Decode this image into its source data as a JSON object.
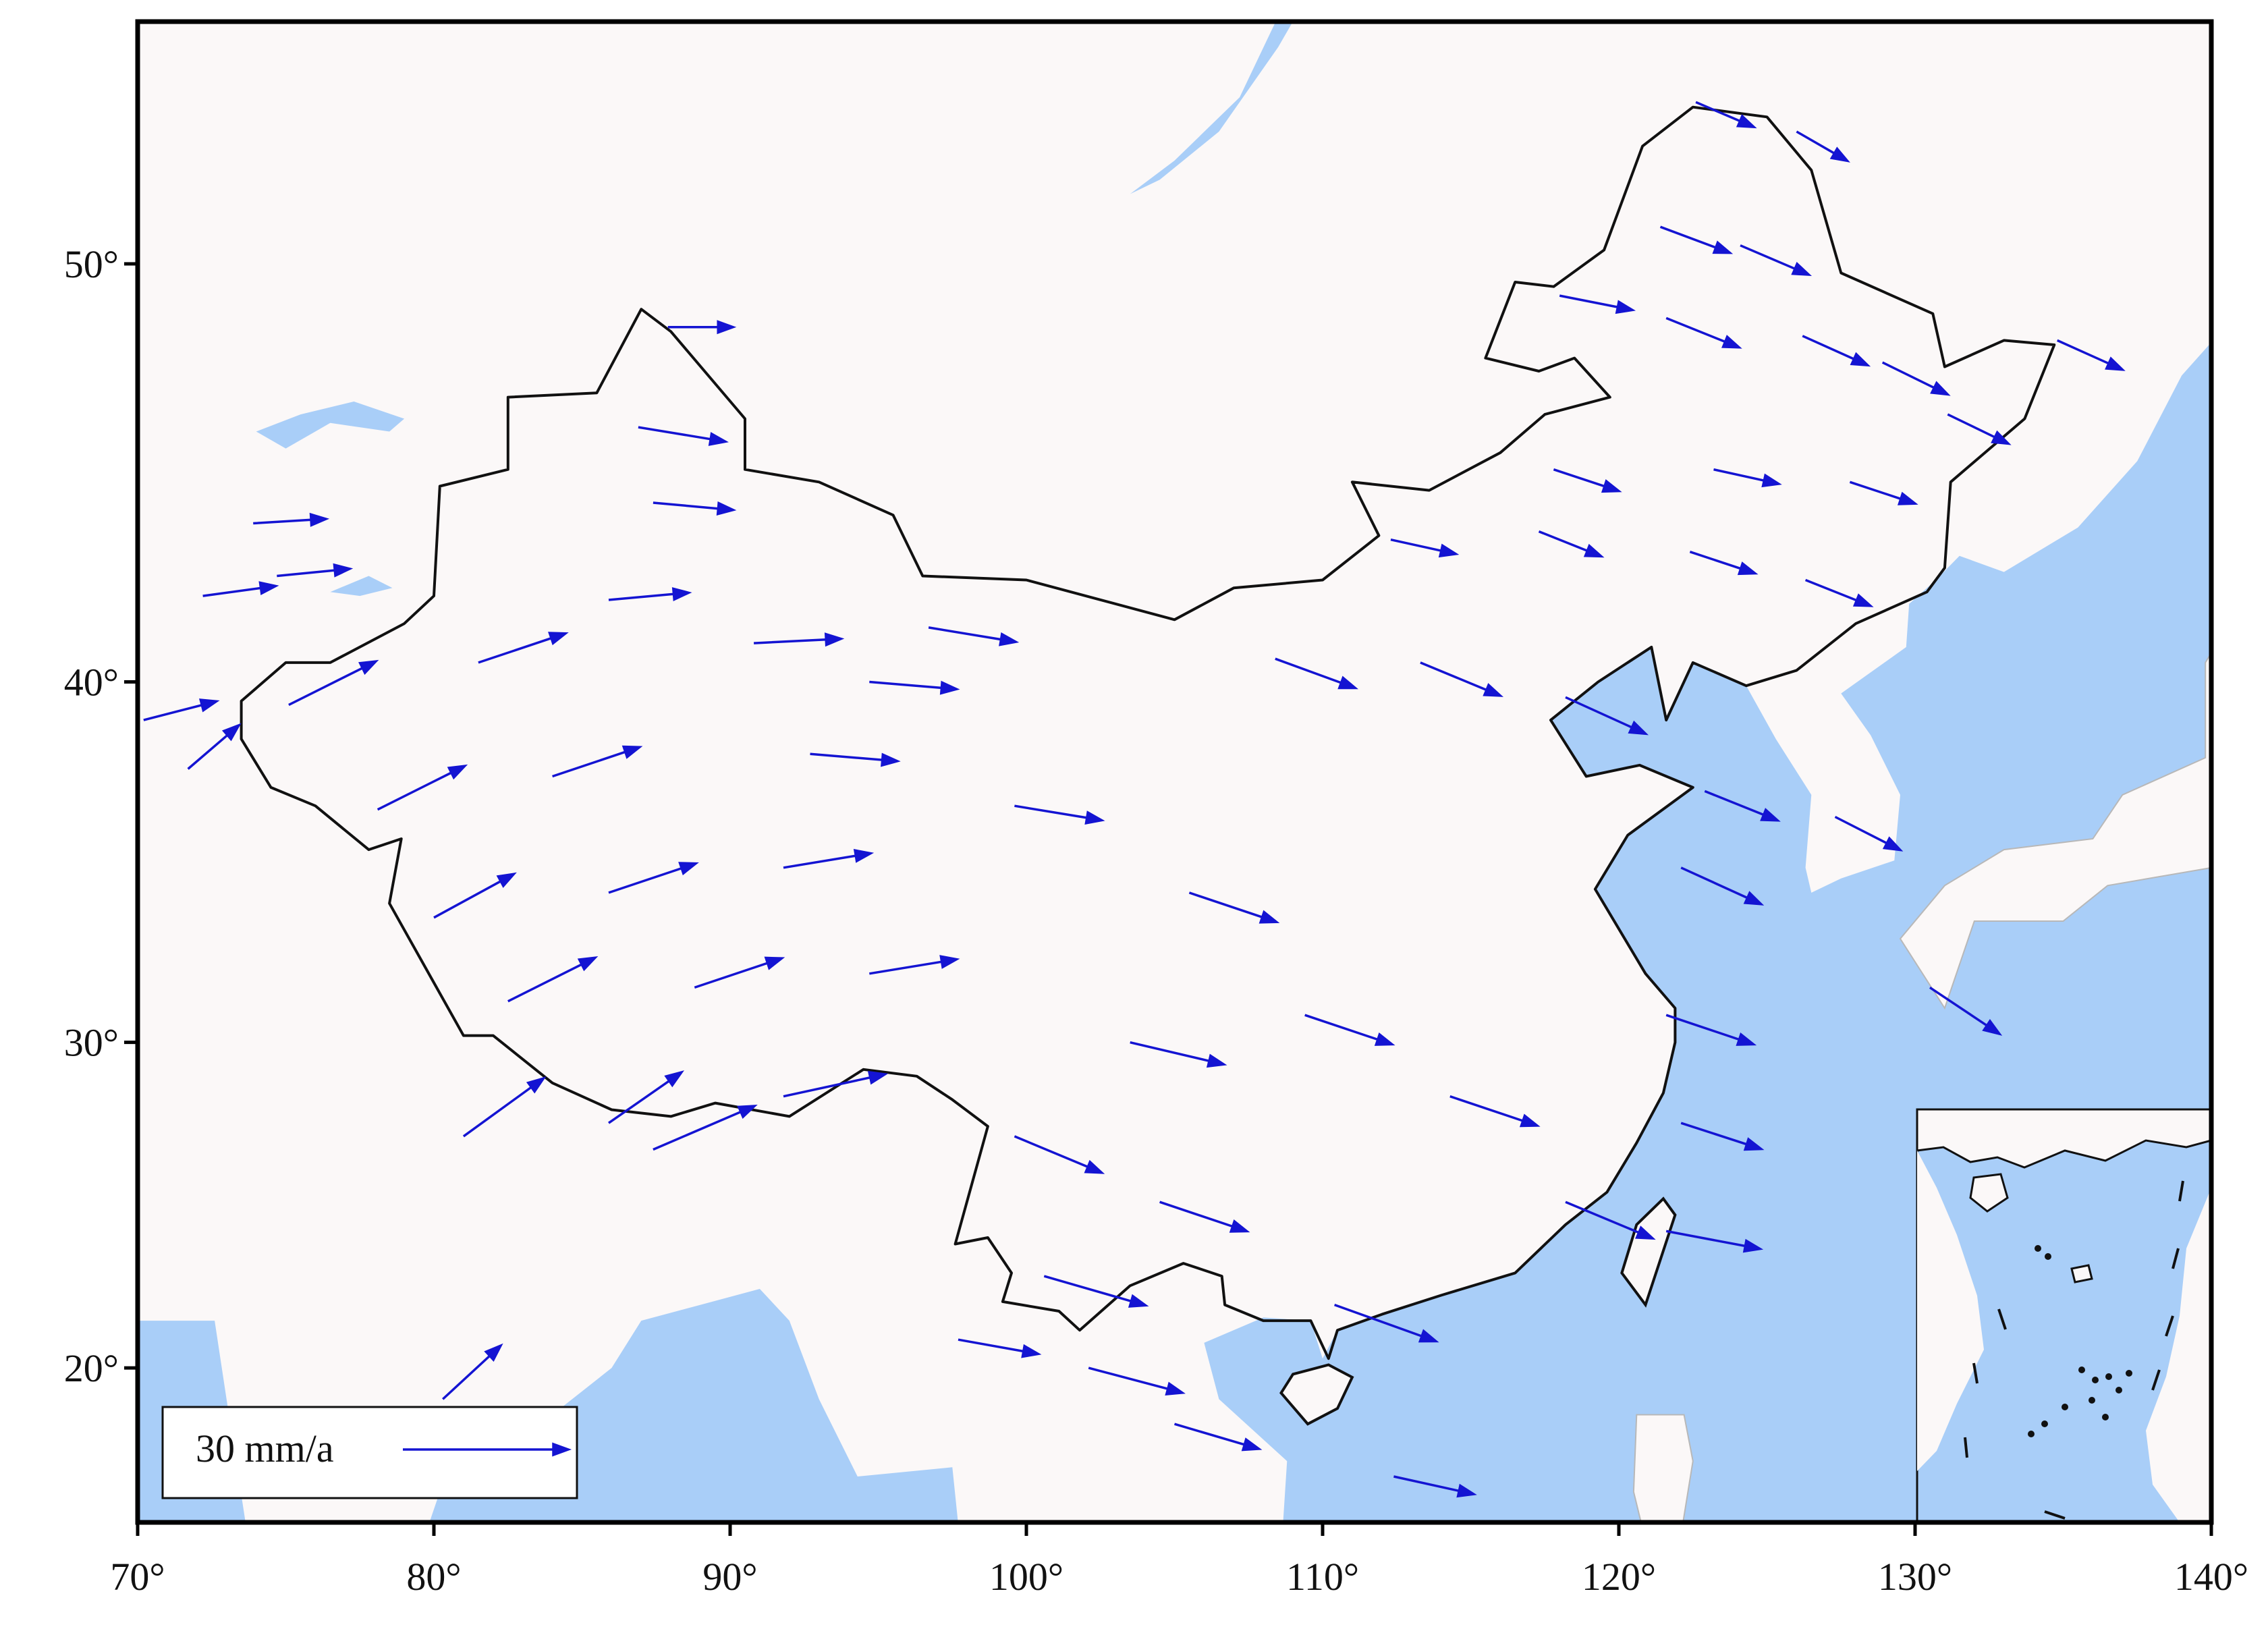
{
  "chart_data": {
    "type": "quiver",
    "projection": "mercator",
    "xlim": [
      70,
      140
    ],
    "ylim": [
      15,
      55
    ],
    "xticks": [
      {
        "value": 70,
        "label": "70°"
      },
      {
        "value": 80,
        "label": "80°"
      },
      {
        "value": 90,
        "label": "90°"
      },
      {
        "value": 100,
        "label": "100°"
      },
      {
        "value": 110,
        "label": "110°"
      },
      {
        "value": 120,
        "label": "120°"
      },
      {
        "value": 130,
        "label": "130°"
      },
      {
        "value": 140,
        "label": "140°"
      }
    ],
    "yticks": [
      {
        "value": 20,
        "label": "20°"
      },
      {
        "value": 30,
        "label": "30°"
      },
      {
        "value": 40,
        "label": "40°"
      },
      {
        "value": 50,
        "label": "50°"
      }
    ],
    "color": "#1414d2",
    "legend": {
      "label": "30 mm/a",
      "value": 30,
      "corner": "lower left"
    },
    "series": [
      {
        "x": [
          122.6,
          126.0,
          121.4,
          124.1,
          118.0,
          121.6,
          126.2,
          128.9,
          131.1,
          134.8,
          117.8,
          123.2,
          127.8,
          117.3,
          122.4,
          126.3,
          112.3,
          108.4,
          113.3,
          118.2,
          122.9,
          127.3,
          130.5,
          122.1,
          121.6,
          122.1,
          121.6,
          118.2,
          114.3,
          109.4,
          110.4,
          112.4,
          105.0,
          102.1,
          97.7,
          100.6,
          104.5,
          99.6,
          103.5,
          105.5,
          99.6,
          94.7,
          92.7,
          81.0,
          85.9,
          87.4,
          91.8,
          82.5,
          88.8,
          94.7,
          80.0,
          85.9,
          91.8,
          78.1,
          84.0,
          75.1,
          81.5,
          71.7,
          70.2,
          85.9,
          87.4,
          86.9,
          87.9,
          90.8,
          73.9,
          72.2,
          74.7,
          80.3,
          96.7
        ],
        "y": [
          53.4,
          52.8,
          50.8,
          50.4,
          49.3,
          48.8,
          48.4,
          47.8,
          46.6,
          48.3,
          45.3,
          45.3,
          45.0,
          43.8,
          43.3,
          42.6,
          43.6,
          40.6,
          40.5,
          39.6,
          37.1,
          36.4,
          31.6,
          35.0,
          30.8,
          27.6,
          24.3,
          25.2,
          28.4,
          30.8,
          22.0,
          16.5,
          18.2,
          20.0,
          20.9,
          22.9,
          25.2,
          27.2,
          30.0,
          34.3,
          36.7,
          40.0,
          38.1,
          27.2,
          27.6,
          26.8,
          28.4,
          31.2,
          31.6,
          32.0,
          33.6,
          34.3,
          35.0,
          36.6,
          37.5,
          39.4,
          40.5,
          37.7,
          39.0,
          42.1,
          44.5,
          46.3,
          48.6,
          41.0,
          44.0,
          42.2,
          42.7,
          19.0,
          41.4
        ],
        "u": [
          10.5,
          9.2,
          12.6,
          12.4,
          13.2,
          13.2,
          11.8,
          11.8,
          11.0,
          11.8,
          11.8,
          11.8,
          11.8,
          11.3,
          11.8,
          11.8,
          11.8,
          14.5,
          14.5,
          14.5,
          13.2,
          11.8,
          12.6,
          14.5,
          15.8,
          14.5,
          17.0,
          15.8,
          15.8,
          15.8,
          18.4,
          14.5,
          15.3,
          17.0,
          14.5,
          18.4,
          15.8,
          15.8,
          17.0,
          15.8,
          15.8,
          15.8,
          15.8,
          14.5,
          13.2,
          18.4,
          18.4,
          15.8,
          15.8,
          15.8,
          14.5,
          15.8,
          15.8,
          15.8,
          15.8,
          15.8,
          15.8,
          9.2,
          13.2,
          14.5,
          14.5,
          15.8,
          11.8,
          15.8,
          13.2,
          13.2,
          13.2,
          10.5,
          15.8
        ],
        "v": [
          -4.5,
          -5.3,
          -4.7,
          -5.3,
          -2.6,
          -5.3,
          -5.3,
          -5.8,
          -5.3,
          -5.3,
          -3.9,
          -2.6,
          -3.9,
          -4.5,
          -3.9,
          -4.7,
          -2.6,
          -5.3,
          -6.0,
          -6.6,
          -5.3,
          -6.0,
          -8.4,
          -6.6,
          -5.3,
          -4.7,
          -3.2,
          -6.6,
          -5.3,
          -5.3,
          -6.6,
          -3.2,
          -4.5,
          -4.5,
          -2.6,
          -5.3,
          -5.3,
          -6.6,
          -4.0,
          -5.3,
          -2.6,
          -1.3,
          -1.3,
          10.5,
          9.2,
          7.9,
          4.0,
          7.9,
          5.3,
          2.6,
          7.9,
          5.3,
          2.6,
          7.9,
          5.3,
          7.9,
          5.3,
          7.9,
          3.4,
          1.3,
          -1.3,
          -2.6,
          0,
          0.8,
          0.8,
          1.8,
          1.3,
          9.7,
          -2.6
        ]
      }
    ]
  }
}
